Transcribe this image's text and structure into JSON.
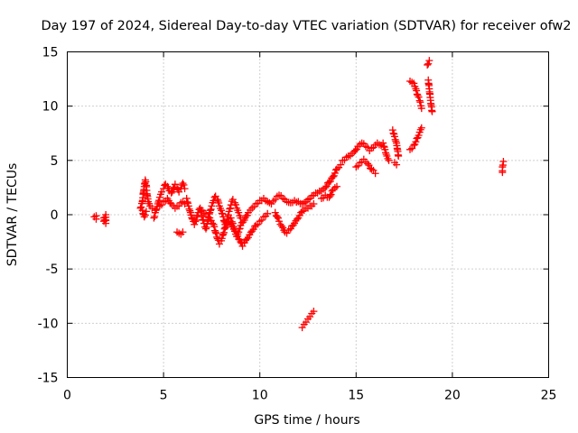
{
  "chart_data": {
    "type": "scatter",
    "title": "Day 197 of 2024, Sidereal Day-to-day VTEC variation (SDTVAR) for receiver ofw2",
    "xlabel": "GPS time / hours",
    "ylabel": "SDTVAR / TECUs",
    "xlim": [
      0,
      25
    ],
    "ylim": [
      -15,
      15
    ],
    "xticks": [
      "0",
      "5",
      "10",
      "15",
      "20",
      "25"
    ],
    "yticks": [
      "15",
      "10",
      "5",
      "0",
      "-5",
      "-10",
      "-15"
    ],
    "grid": true,
    "marker": "+",
    "color": "#ff0000",
    "series": [
      {
        "name": "SDTVAR",
        "segments": [
          [
            [
              1.4,
              -0.2
            ],
            [
              1.5,
              -0.4
            ],
            [
              1.5,
              -0.1
            ]
          ],
          [
            [
              1.9,
              -0.3
            ],
            [
              1.9,
              -0.6
            ],
            [
              2.0,
              0.0
            ],
            [
              2.0,
              -0.8
            ]
          ],
          [
            [
              3.8,
              0.6
            ],
            [
              3.9,
              1.2
            ],
            [
              3.95,
              2.0
            ],
            [
              4.0,
              2.6
            ],
            [
              4.05,
              3.2
            ],
            [
              4.1,
              2.7
            ],
            [
              4.15,
              1.8
            ],
            [
              4.2,
              1.2
            ],
            [
              4.3,
              0.8
            ],
            [
              4.4,
              0.6
            ]
          ],
          [
            [
              3.9,
              0.4
            ],
            [
              4.0,
              -0.2
            ],
            [
              4.1,
              0.3
            ]
          ],
          [
            [
              4.5,
              -0.3
            ],
            [
              4.6,
              0.4
            ],
            [
              4.7,
              1.0
            ],
            [
              4.8,
              1.6
            ],
            [
              4.9,
              2.1
            ],
            [
              5.0,
              2.4
            ],
            [
              5.1,
              2.8
            ],
            [
              5.2,
              2.6
            ],
            [
              5.3,
              2.2
            ],
            [
              5.4,
              2.0
            ],
            [
              5.5,
              2.4
            ],
            [
              5.6,
              2.8
            ],
            [
              5.7,
              2.5
            ],
            [
              5.8,
              2.1
            ],
            [
              5.9,
              2.4
            ],
            [
              6.0,
              2.9
            ],
            [
              6.1,
              2.4
            ]
          ],
          [
            [
              4.8,
              0.8
            ],
            [
              5.0,
              1.2
            ],
            [
              5.2,
              1.5
            ],
            [
              5.4,
              1.0
            ],
            [
              5.6,
              0.6
            ],
            [
              5.8,
              0.8
            ],
            [
              6.0,
              1.2
            ],
            [
              6.1,
              1.0
            ]
          ],
          [
            [
              5.7,
              -1.6
            ],
            [
              5.8,
              -1.7
            ],
            [
              5.9,
              -1.8
            ],
            [
              6.0,
              -1.6
            ]
          ],
          [
            [
              6.2,
              1.5
            ],
            [
              6.3,
              0.8
            ],
            [
              6.4,
              0.2
            ],
            [
              6.5,
              -0.4
            ],
            [
              6.6,
              -0.9
            ],
            [
              6.7,
              -0.5
            ],
            [
              6.8,
              0.2
            ],
            [
              6.9,
              0.6
            ],
            [
              7.0,
              -0.2
            ],
            [
              7.1,
              -0.8
            ],
            [
              7.2,
              -1.3
            ],
            [
              7.3,
              -0.6
            ],
            [
              7.4,
              0.2
            ],
            [
              7.5,
              0.8
            ],
            [
              7.6,
              1.3
            ],
            [
              7.7,
              1.7
            ],
            [
              7.8,
              1.4
            ],
            [
              7.9,
              0.8
            ],
            [
              8.0,
              0.4
            ],
            [
              8.1,
              -0.2
            ],
            [
              8.2,
              -0.9
            ],
            [
              8.3,
              -0.4
            ],
            [
              8.4,
              0.3
            ],
            [
              8.5,
              0.9
            ],
            [
              8.6,
              1.4
            ],
            [
              8.7,
              1.1
            ],
            [
              8.8,
              0.6
            ],
            [
              8.9,
              0.2
            ],
            [
              9.0,
              -0.3
            ]
          ],
          [
            [
              7.0,
              0.4
            ],
            [
              7.2,
              0.1
            ],
            [
              7.4,
              -0.3
            ],
            [
              7.6,
              -0.9
            ],
            [
              7.7,
              -1.6
            ],
            [
              7.8,
              -2.2
            ],
            [
              7.9,
              -2.7
            ],
            [
              8.0,
              -2.4
            ],
            [
              8.1,
              -1.8
            ],
            [
              8.2,
              -1.2
            ],
            [
              8.4,
              -0.6
            ],
            [
              8.6,
              -1.1
            ],
            [
              8.8,
              -1.8
            ],
            [
              9.0,
              -2.5
            ],
            [
              9.1,
              -2.9
            ],
            [
              9.2,
              -2.6
            ],
            [
              9.4,
              -2.1
            ],
            [
              9.6,
              -1.5
            ],
            [
              9.8,
              -1.0
            ],
            [
              10.0,
              -0.6
            ],
            [
              10.2,
              -0.2
            ],
            [
              10.4,
              0.1
            ]
          ],
          [
            [
              8.5,
              -0.3
            ],
            [
              8.6,
              -0.8
            ],
            [
              8.7,
              -1.5
            ],
            [
              8.8,
              -2.0
            ],
            [
              8.9,
              -1.6
            ],
            [
              9.0,
              -1.0
            ],
            [
              9.2,
              -0.5
            ],
            [
              9.4,
              0.2
            ],
            [
              9.6,
              0.6
            ],
            [
              9.8,
              1.0
            ],
            [
              10.0,
              1.3
            ],
            [
              10.2,
              1.5
            ],
            [
              10.4,
              1.2
            ],
            [
              10.6,
              1.0
            ],
            [
              10.8,
              1.4
            ],
            [
              11.0,
              1.8
            ],
            [
              11.2,
              1.5
            ],
            [
              11.4,
              1.2
            ],
            [
              11.6,
              1.1
            ],
            [
              11.8,
              1.3
            ],
            [
              12.0,
              1.2
            ],
            [
              12.2,
              1.0
            ],
            [
              12.4,
              1.2
            ],
            [
              12.6,
              1.5
            ],
            [
              12.8,
              1.8
            ],
            [
              13.0,
              2.0
            ],
            [
              13.2,
              2.2
            ],
            [
              13.4,
              2.5
            ],
            [
              13.6,
              3.0
            ],
            [
              13.8,
              3.5
            ],
            [
              14.0,
              4.2
            ],
            [
              14.2,
              4.6
            ]
          ],
          [
            [
              10.8,
              0.2
            ],
            [
              11.0,
              -0.6
            ],
            [
              11.2,
              -1.2
            ],
            [
              11.3,
              -1.6
            ],
            [
              11.4,
              -1.7
            ],
            [
              11.6,
              -1.3
            ],
            [
              11.8,
              -0.8
            ],
            [
              12.0,
              -0.3
            ],
            [
              12.2,
              0.3
            ],
            [
              12.4,
              0.6
            ],
            [
              12.6,
              0.8
            ],
            [
              12.8,
              1.0
            ]
          ],
          [
            [
              12.2,
              -10.4
            ],
            [
              12.3,
              -10.1
            ],
            [
              12.4,
              -9.9
            ],
            [
              12.5,
              -9.6
            ],
            [
              12.6,
              -9.4
            ],
            [
              12.7,
              -9.1
            ],
            [
              12.8,
              -8.9
            ]
          ],
          [
            [
              13.2,
              1.5
            ],
            [
              13.4,
              1.8
            ],
            [
              13.6,
              1.6
            ],
            [
              13.8,
              2.3
            ],
            [
              14.0,
              2.6
            ]
          ],
          [
            [
              14.3,
              5.0
            ],
            [
              14.6,
              5.4
            ],
            [
              14.9,
              5.8
            ],
            [
              15.1,
              6.3
            ],
            [
              15.3,
              6.6
            ],
            [
              15.5,
              6.3
            ],
            [
              15.7,
              5.9
            ],
            [
              15.9,
              6.2
            ],
            [
              16.1,
              6.6
            ],
            [
              16.3,
              6.4
            ]
          ],
          [
            [
              15.0,
              4.4
            ],
            [
              15.2,
              4.8
            ],
            [
              15.4,
              5.1
            ],
            [
              15.6,
              4.7
            ],
            [
              15.8,
              4.2
            ],
            [
              16.0,
              3.8
            ]
          ],
          [
            [
              16.4,
              6.6
            ],
            [
              16.5,
              6.0
            ],
            [
              16.6,
              5.4
            ],
            [
              16.7,
              5.0
            ]
          ],
          [
            [
              16.9,
              7.8
            ],
            [
              17.0,
              7.2
            ],
            [
              17.1,
              6.6
            ],
            [
              17.15,
              6.0
            ],
            [
              17.2,
              5.4
            ]
          ],
          [
            [
              17.0,
              4.8
            ],
            [
              17.1,
              4.6
            ]
          ],
          [
            [
              17.8,
              6.0
            ],
            [
              18.0,
              6.4
            ],
            [
              18.2,
              7.1
            ],
            [
              18.3,
              7.6
            ],
            [
              18.4,
              8.0
            ]
          ],
          [
            [
              17.8,
              12.3
            ],
            [
              17.9,
              12.2
            ],
            [
              18.0,
              12.1
            ],
            [
              18.1,
              11.6
            ],
            [
              18.2,
              11.0
            ],
            [
              18.3,
              10.5
            ],
            [
              18.4,
              9.8
            ]
          ],
          [
            [
              18.7,
              13.8
            ],
            [
              18.8,
              14.2
            ]
          ],
          [
            [
              18.75,
              12.4
            ],
            [
              18.8,
              11.6
            ],
            [
              18.85,
              10.8
            ],
            [
              18.9,
              10.1
            ],
            [
              18.95,
              9.5
            ]
          ],
          [
            [
              22.6,
              3.9
            ],
            [
              22.6,
              4.4
            ],
            [
              22.65,
              4.9
            ]
          ]
        ]
      }
    ]
  }
}
